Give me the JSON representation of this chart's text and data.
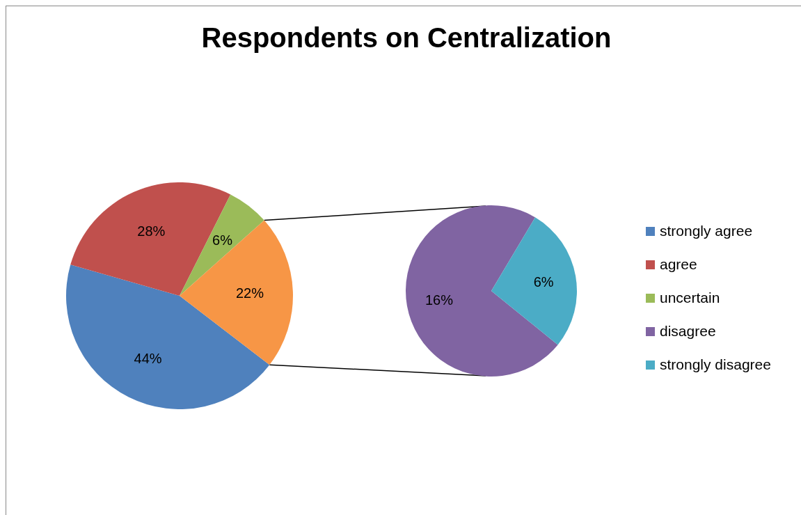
{
  "chart_data": [
    {
      "type": "pie",
      "title": "Respondents on Centralization",
      "categories": [
        "strongly agree",
        "agree",
        "uncertain",
        null
      ],
      "values": [
        44,
        28,
        6,
        22
      ],
      "colors": [
        "#4f81bd",
        "#c0504d",
        "#9bbb59",
        "#f79646"
      ],
      "value_labels": [
        "44%",
        "28%",
        "6%",
        "22%"
      ],
      "legend": "right"
    },
    {
      "type": "pie",
      "categories": [
        "disagree",
        "strongly disagree"
      ],
      "values": [
        16,
        6
      ],
      "colors": [
        "#8064a2",
        "#4bacc6"
      ],
      "value_labels": [
        "16%",
        "6%"
      ],
      "legend": "right"
    }
  ]
}
